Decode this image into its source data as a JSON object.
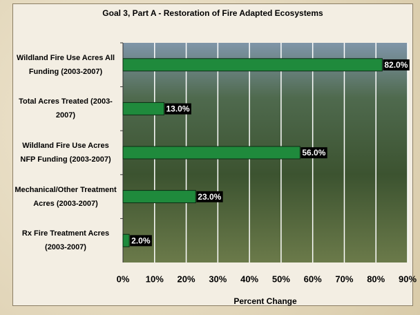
{
  "chart_data": {
    "type": "bar",
    "orientation": "horizontal",
    "title": "Goal 3, Part A - Restoration of Fire Adapted Ecosystems",
    "categories": [
      "Wildland Fire Use Acres All Funding (2003-2007)",
      "Total Acres Treated (2003-2007)",
      "Wildland Fire Use Acres NFP Funding (2003-2007)",
      "Mechanical/Other Treatment Acres (2003-2007)",
      "Rx Fire Treatment Acres (2003-2007)"
    ],
    "values": [
      82,
      13,
      56,
      23,
      2
    ],
    "value_labels": [
      "82.0%",
      "13.0%",
      "56.0%",
      "23.0%",
      "2.0%"
    ],
    "color": "#1f8a3c",
    "x_label": "Percent Change",
    "xlim": [
      0,
      90
    ],
    "xticks": [
      {
        "value": 0,
        "label": "0%"
      },
      {
        "value": 10,
        "label": "10%"
      },
      {
        "value": 20,
        "label": "20%"
      },
      {
        "value": 30,
        "label": "30%"
      },
      {
        "value": 40,
        "label": "40%"
      },
      {
        "value": 50,
        "label": "50%"
      },
      {
        "value": 60,
        "label": "60%"
      },
      {
        "value": 70,
        "label": "70%"
      },
      {
        "value": 80,
        "label": "80%"
      },
      {
        "value": 90,
        "label": "90%"
      }
    ],
    "grid": true
  }
}
